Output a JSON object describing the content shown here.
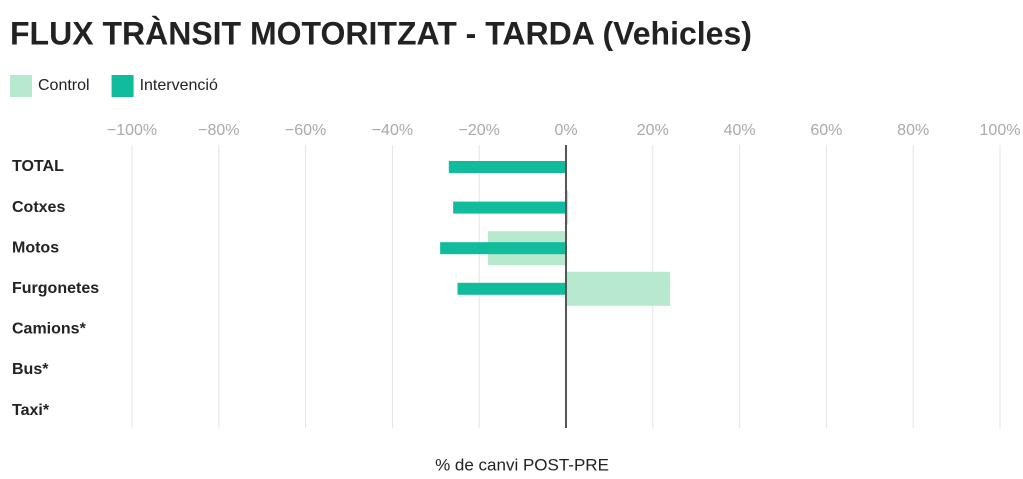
{
  "chart_data": {
    "type": "hbar",
    "title": "FLUX TRÀNSIT MOTORITZAT - TARDA (Vehicles)",
    "categories": [
      "TOTAL",
      "Cotxes",
      "Motos",
      "Furgonetes",
      "Camions*",
      "Bus*",
      "Taxi*"
    ],
    "series": [
      {
        "name": "Control",
        "color": "#b7e9cf",
        "values": [
          0,
          0.5,
          -18,
          24,
          null,
          null,
          null
        ]
      },
      {
        "name": "Intervenció",
        "color": "#10bc9c",
        "values": [
          -27,
          -26,
          -29,
          -25,
          null,
          null,
          null
        ]
      }
    ],
    "xlim": [
      -100,
      100
    ],
    "xticks": [
      {
        "value": -100,
        "label": "−100%"
      },
      {
        "value": -80,
        "label": "−80%"
      },
      {
        "value": -60,
        "label": "−60%"
      },
      {
        "value": -40,
        "label": "−40%"
      },
      {
        "value": -20,
        "label": "−20%"
      },
      {
        "value": 0,
        "label": "0%"
      },
      {
        "value": 20,
        "label": "20%"
      },
      {
        "value": 40,
        "label": "40%"
      },
      {
        "value": 60,
        "label": "60%"
      },
      {
        "value": 80,
        "label": "80%"
      },
      {
        "value": 100,
        "label": "100%"
      }
    ],
    "xlabel": "% de canvi POST-PRE",
    "grid": true
  }
}
